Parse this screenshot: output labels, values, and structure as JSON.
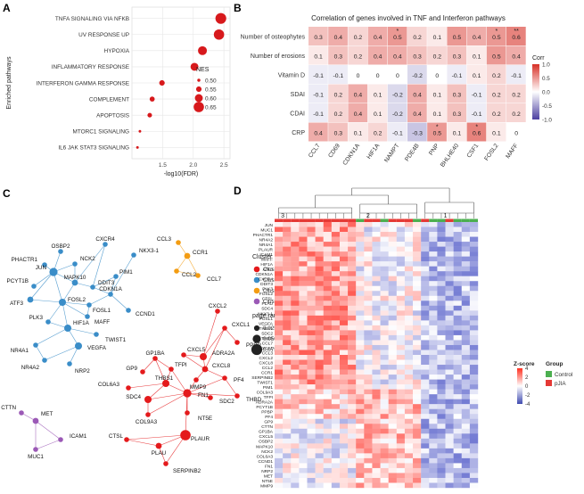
{
  "panels": {
    "a": "A",
    "b": "B",
    "c": "C",
    "d": "D"
  },
  "chart_data": [
    {
      "type": "scatter",
      "id": "A",
      "title": "",
      "xlabel": "-log10(FDR)",
      "ylabel": "Enriched pathways",
      "xlim": [
        1.0,
        2.6
      ],
      "xticks": [
        "1.5",
        "2.0",
        "2.5"
      ],
      "categories": [
        "TNFA SIGNALING VIA NFKB",
        "UV RESPONSE UP",
        "HYPOXIA",
        "INFLAMMATORY RESPONSE",
        "INTERFERON GAMMA RESPONSE",
        "COMPLEMENT",
        "APOPTOSIS",
        "MTORC1 SIGNALING",
        "IL6 JAK STAT3 SIGNALING"
      ],
      "x": [
        2.45,
        2.42,
        2.15,
        2.02,
        1.49,
        1.33,
        1.29,
        1.13,
        1.09
      ],
      "nes": [
        0.66,
        0.65,
        0.62,
        0.6,
        0.55,
        0.54,
        0.53,
        0.49,
        0.49
      ],
      "legend_title": "NES",
      "legend_labels": [
        "0.50",
        "0.55",
        "0.60",
        "0.65"
      ]
    },
    {
      "type": "heatmap",
      "id": "B",
      "title": "Correlation of genes involved in TNF and Interferon pathways",
      "rows": [
        "Number of osteophytes",
        "Number of erosions",
        "Vitamin D",
        "SDAI",
        "CDAI",
        "CRP"
      ],
      "columns": [
        "CCL7",
        "CD69",
        "CDKN1A",
        "HIF1A",
        "NAMPT",
        "PDE4B",
        "PNP",
        "BHLHE40",
        "CSF1",
        "FOSL2",
        "MAFF"
      ],
      "values": [
        [
          0.3,
          0.4,
          0.2,
          0.4,
          0.5,
          0.2,
          0.1,
          0.5,
          0.4,
          0.5,
          0.6
        ],
        [
          0.1,
          0.3,
          0.2,
          0.4,
          0.4,
          0.3,
          0.2,
          0.3,
          0.1,
          0.5,
          0.4
        ],
        [
          -0.1,
          -0.1,
          0,
          0,
          0,
          -0.2,
          0,
          -0.1,
          0.1,
          0.2,
          -0.1
        ],
        [
          -0.1,
          0.2,
          0.4,
          0.1,
          -0.2,
          0.4,
          0.1,
          0.3,
          -0.1,
          0.2,
          0.2
        ],
        [
          -0.1,
          0.2,
          0.4,
          0.1,
          -0.2,
          0.4,
          0.1,
          0.3,
          -0.1,
          0.2,
          0.2
        ],
        [
          0.4,
          0.3,
          0.1,
          0.2,
          -0.1,
          -0.3,
          0.5,
          0.1,
          0.6,
          0.1,
          0
        ]
      ],
      "significance": [
        [
          "",
          "",
          "",
          "",
          "*",
          "",
          "",
          "",
          "",
          "*",
          "**"
        ],
        [
          "",
          "",
          "",
          "",
          "",
          "",
          "",
          "",
          "",
          "",
          ""
        ],
        [
          "",
          "",
          "",
          "",
          "",
          "",
          "",
          "",
          "",
          "",
          ""
        ],
        [
          "",
          "",
          "",
          "",
          "",
          "",
          "",
          "",
          "",
          "",
          ""
        ],
        [
          "",
          "",
          "",
          "",
          "",
          "",
          "",
          "",
          "",
          "",
          ""
        ],
        [
          "",
          "",
          "",
          "",
          "",
          "",
          "*",
          "",
          "*",
          "",
          ""
        ]
      ],
      "legend_title": "Corr",
      "legend_labels": [
        "1.0",
        "0.5",
        "0.0",
        "-0.5",
        "-1.0"
      ],
      "colors": {
        "high": "#d73027",
        "mid": "#ffffff",
        "low": "#4b3fa0"
      }
    },
    {
      "type": "network",
      "id": "C",
      "legend_title": "Cluster",
      "clusters": [
        "Cluster_1",
        "Cluster_2",
        "Cluster_3",
        "Cluster_4"
      ],
      "cluster_colors": [
        "#e41a1c",
        "#3a8dc8",
        "#f39c12",
        "#9b59b6"
      ],
      "size_title": "page.rank",
      "size_labels": [
        "0.025",
        "0.050",
        "0.075"
      ],
      "nodes": [
        {
          "label": "OSBP2",
          "cluster": 2,
          "rank": 0.02
        },
        {
          "label": "PHACTR1",
          "cluster": 2,
          "rank": 0.02
        },
        {
          "label": "NCK2",
          "cluster": 2,
          "rank": 0.02
        },
        {
          "label": "CXCR4",
          "cluster": 2,
          "rank": 0.02
        },
        {
          "label": "JUN",
          "cluster": 2,
          "rank": 0.05
        },
        {
          "label": "PCYT1B",
          "cluster": 2,
          "rank": 0.02
        },
        {
          "label": "MAPK10",
          "cluster": 2,
          "rank": 0.03
        },
        {
          "label": "DDIT3",
          "cluster": 2,
          "rank": 0.02
        },
        {
          "label": "PIM1",
          "cluster": 2,
          "rank": 0.02
        },
        {
          "label": "NKX3-1",
          "cluster": 2,
          "rank": 0.02
        },
        {
          "label": "ATF3",
          "cluster": 2,
          "rank": 0.03
        },
        {
          "label": "FOSL2",
          "cluster": 2,
          "rank": 0.04
        },
        {
          "label": "CDKN1A",
          "cluster": 2,
          "rank": 0.02
        },
        {
          "label": "FOSL1",
          "cluster": 2,
          "rank": 0.02
        },
        {
          "label": "CCND1",
          "cluster": 2,
          "rank": 0.02
        },
        {
          "label": "PLK3",
          "cluster": 2,
          "rank": 0.02
        },
        {
          "label": "MAFF",
          "cluster": 2,
          "rank": 0.02
        },
        {
          "label": "HIF1A",
          "cluster": 2,
          "rank": 0.04
        },
        {
          "label": "TWIST1",
          "cluster": 2,
          "rank": 0.02
        },
        {
          "label": "VEGFA",
          "cluster": 2,
          "rank": 0.04
        },
        {
          "label": "NR4A1",
          "cluster": 2,
          "rank": 0.02
        },
        {
          "label": "NR4A2",
          "cluster": 2,
          "rank": 0.02
        },
        {
          "label": "NRP2",
          "cluster": 2,
          "rank": 0.02
        },
        {
          "label": "CCL3",
          "cluster": 3,
          "rank": 0.02
        },
        {
          "label": "CCR1",
          "cluster": 3,
          "rank": 0.03
        },
        {
          "label": "CCL2",
          "cluster": 3,
          "rank": 0.02
        },
        {
          "label": "CCL7",
          "cluster": 3,
          "rank": 0.02
        },
        {
          "label": "CXCL2",
          "cluster": 1,
          "rank": 0.02
        },
        {
          "label": "CXCL1",
          "cluster": 1,
          "rank": 0.02
        },
        {
          "label": "PPBP",
          "cluster": 1,
          "rank": 0.02
        },
        {
          "label": "GP1BA",
          "cluster": 1,
          "rank": 0.02
        },
        {
          "label": "CXCL5",
          "cluster": 1,
          "rank": 0.02
        },
        {
          "label": "ADRA2A",
          "cluster": 1,
          "rank": 0.04
        },
        {
          "label": "GP9",
          "cluster": 1,
          "rank": 0.02
        },
        {
          "label": "TFPI",
          "cluster": 1,
          "rank": 0.02
        },
        {
          "label": "CXCL8",
          "cluster": 1,
          "rank": 0.03
        },
        {
          "label": "MMP9",
          "cluster": 1,
          "rank": 0.02
        },
        {
          "label": "PF4",
          "cluster": 1,
          "rank": 0.02
        },
        {
          "label": "THBD",
          "cluster": 1,
          "rank": 0.02
        },
        {
          "label": "COL6A3",
          "cluster": 1,
          "rank": 0.02
        },
        {
          "label": "THBS1",
          "cluster": 1,
          "rank": 0.04
        },
        {
          "label": "FN1",
          "cluster": 1,
          "rank": 0.05
        },
        {
          "label": "SDC2",
          "cluster": 1,
          "rank": 0.02
        },
        {
          "label": "SDC4",
          "cluster": 1,
          "rank": 0.04
        },
        {
          "label": "NT5E",
          "cluster": 1,
          "rank": 0.02
        },
        {
          "label": "COL9A3",
          "cluster": 1,
          "rank": 0.02
        },
        {
          "label": "PLAUR",
          "cluster": 1,
          "rank": 0.07
        },
        {
          "label": "CTSL",
          "cluster": 1,
          "rank": 0.02
        },
        {
          "label": "PLAU",
          "cluster": 1,
          "rank": 0.03
        },
        {
          "label": "SERPINB2",
          "cluster": 1,
          "rank": 0.02
        },
        {
          "label": "CTTN",
          "cluster": 4,
          "rank": 0.02
        },
        {
          "label": "MET",
          "cluster": 4,
          "rank": 0.03
        },
        {
          "label": "ICAM1",
          "cluster": 4,
          "rank": 0.02
        },
        {
          "label": "MUC1",
          "cluster": 4,
          "rank": 0.02
        }
      ]
    },
    {
      "type": "heatmap",
      "id": "D",
      "cluster_labels": [
        "3",
        "2",
        "1"
      ],
      "genes": [
        "JUN",
        "MUC1",
        "PHACTR1",
        "NR4A2",
        "NR4A1",
        "PLAUR",
        "ICAM1",
        "MAFF",
        "HIF1A",
        "ATF3",
        "CDKN1A",
        "CXCR4",
        "DDIT3",
        "PLK3",
        "FOSL2",
        "CTSL",
        "PLAU",
        "SDC4",
        "NKX3-1",
        "FOSL1",
        "VEGFA",
        "THBS1",
        "SDC2",
        "THBD",
        "CCL7",
        "CXCL1",
        "CCL3",
        "CXCL2",
        "CXCL8",
        "CCL2",
        "CCR1",
        "SERPINB2",
        "TWIST1",
        "PIM1",
        "COL9A3",
        "TFPI",
        "ADRA2A",
        "PCYT1B",
        "PPBP",
        "PF4",
        "GP9",
        "CTTN",
        "GP1BA",
        "CXCL5",
        "OSBP2",
        "MAPK10",
        "NCK2",
        "COL6A3",
        "CCND1",
        "FN1",
        "NRP2",
        "MET",
        "NT5E",
        "MMP9"
      ],
      "legend_title": "Z-score",
      "legend_labels": [
        "4",
        "2",
        "0",
        "-2",
        "-4"
      ],
      "group_title": "Group",
      "groups": [
        "Control",
        "pJIA"
      ],
      "group_colors": [
        "#4caf50",
        "#e53935"
      ]
    }
  ]
}
